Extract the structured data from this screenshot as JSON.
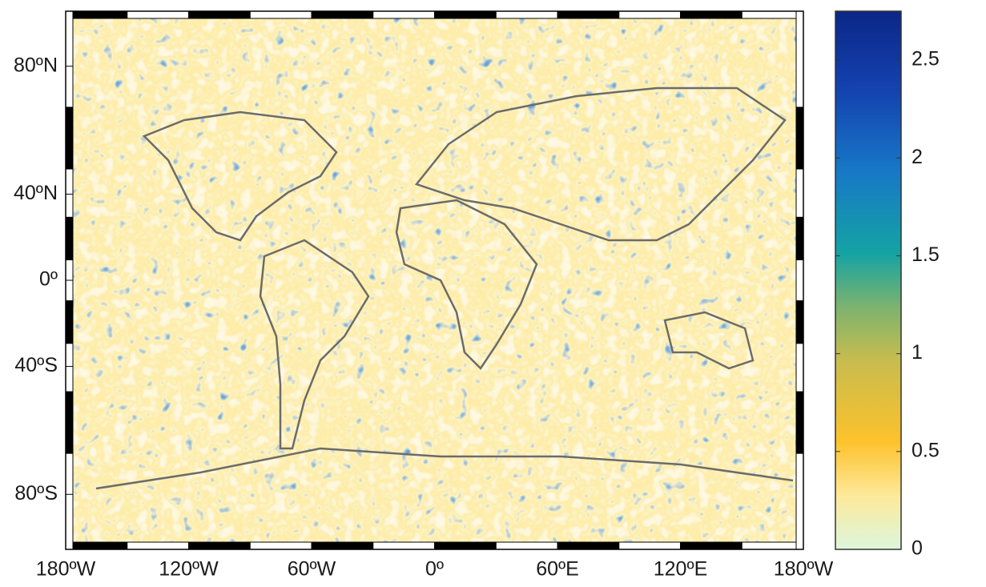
{
  "chart_data": {
    "type": "map",
    "projection": "miller",
    "xlim": [
      -180,
      180
    ],
    "xticks": [
      {
        "value": -180,
        "label": "180ºW"
      },
      {
        "value": -120,
        "label": "120ºW"
      },
      {
        "value": -60,
        "label": "60ºW"
      },
      {
        "value": 0,
        "label": "0º"
      },
      {
        "value": 60,
        "label": "60ºE"
      },
      {
        "value": 120,
        "label": "120ºE"
      },
      {
        "value": 180,
        "label": "180ºW"
      }
    ],
    "ylim": [
      -90,
      90
    ],
    "yticks": [
      {
        "value": 80,
        "label": "80ºN"
      },
      {
        "value": 40,
        "label": "40ºN"
      },
      {
        "value": 0,
        "label": "0º"
      },
      {
        "value": -40,
        "label": "40ºS"
      },
      {
        "value": -80,
        "label": "80ºS"
      }
    ],
    "colorbar": {
      "lim": [
        0,
        2.75
      ],
      "ticks": [
        0,
        0.5,
        1,
        1.5,
        2,
        2.5
      ]
    }
  }
}
